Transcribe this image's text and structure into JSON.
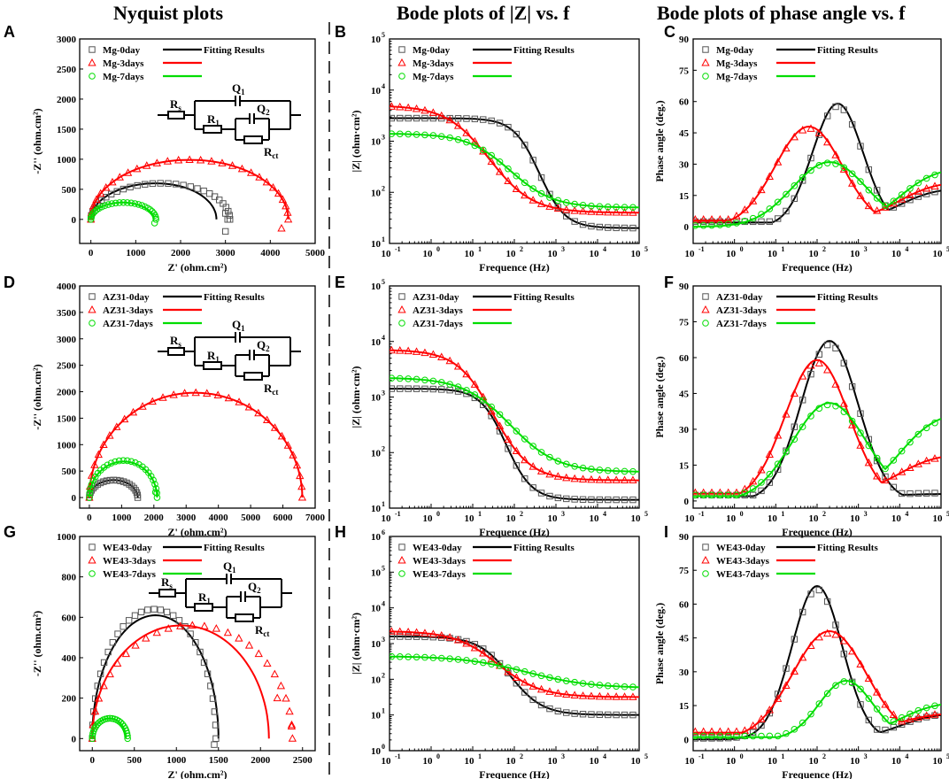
{
  "headers": {
    "nyquist": "Nyquist plots",
    "bode_z": "Bode plots of |Z| vs. f",
    "bode_phase": "Bode plots of phase angle  vs. f"
  },
  "legend": {
    "fitting": "Fitting Results"
  },
  "circuit_labels": {
    "rs": "R",
    "rs_sub": "s",
    "r1": "R",
    "r1_sub": "1",
    "q1": "Q",
    "q1_sub": "1",
    "q2": "Q",
    "q2_sub": "2",
    "rct": "R",
    "rct_sub": "ct"
  },
  "colors": {
    "day0": "#000000",
    "day3": "#ff0000",
    "day7": "#00dd00",
    "marker0": "#555555"
  },
  "chart_data": [
    {
      "panel": "A",
      "type": "scatter",
      "kind": "nyquist",
      "xlabel": "Z' (ohm.cm²)",
      "ylabel": "-Z'' (ohm.cm²)",
      "xlim": [
        -250,
        5000
      ],
      "ylim": [
        -400,
        3000
      ],
      "xticks": [
        0,
        1000,
        2000,
        3000,
        4000,
        5000
      ],
      "yticks": [
        0,
        500,
        1000,
        1500,
        2000,
        2500,
        3000
      ],
      "legend_labels": [
        "Mg-0day",
        "Mg-3days",
        "Mg-7days"
      ],
      "series": [
        {
          "name": "Mg-0day",
          "color": "day0",
          "marker": "square",
          "R": 3100,
          "peak": 600,
          "r0": 30,
          "skew": 0.6,
          "tail": [
            [
              3000,
              100
            ],
            [
              3050,
              0
            ],
            [
              3000,
              -200
            ]
          ],
          "fitR": 2800,
          "fitPeak": 600,
          "fitSkew": 0.7,
          "n": 28
        },
        {
          "name": "Mg-3days",
          "color": "day3",
          "marker": "triangle",
          "R": 4400,
          "peak": 990,
          "r0": 30,
          "skew": 0.5,
          "tail": [
            [
              4250,
              -150
            ]
          ],
          "fitR": 4400,
          "fitPeak": 990,
          "fitSkew": 0.5,
          "n": 28
        },
        {
          "name": "Mg-7days",
          "color": "day7",
          "marker": "circle",
          "R": 1450,
          "peak": 280,
          "r0": 30,
          "skew": 0.55,
          "tail": [
            [
              1420,
              -60
            ]
          ],
          "fitR": 1400,
          "fitPeak": 280,
          "fitSkew": 0.55,
          "n": 26
        }
      ]
    },
    {
      "panel": "B",
      "type": "scatter",
      "kind": "bode_z",
      "xlabel": "Frequence (Hz)",
      "ylabel": "|Z| (ohm·cm²)",
      "xlim_exp": [
        -1,
        5
      ],
      "ylim_exp": [
        1,
        5
      ],
      "legend_labels": [
        "Mg-0day",
        "Mg-3days",
        "Mg-7days"
      ],
      "series": [
        {
          "name": "Mg-0day",
          "color": "day0",
          "marker": "square",
          "logZlow": 3.45,
          "logZhigh": 1.3,
          "fc": 2.6,
          "slope": 1.0
        },
        {
          "name": "Mg-3days",
          "color": "day3",
          "marker": "triangle",
          "logZlow": 3.7,
          "logZhigh": 1.6,
          "fc": 1.4,
          "slope": 0.6
        },
        {
          "name": "Mg-7days",
          "color": "day7",
          "marker": "circle",
          "logZlow": 3.15,
          "logZhigh": 1.7,
          "fc": 1.9,
          "slope": 0.6
        }
      ]
    },
    {
      "panel": "C",
      "type": "scatter",
      "kind": "bode_phase",
      "xlabel": "Frequence (Hz)",
      "ylabel": "Phase angle (deg.)",
      "xlim_exp": [
        -1,
        5
      ],
      "ylim": [
        -8,
        90
      ],
      "yticks": [
        0,
        15,
        30,
        45,
        60,
        75,
        90
      ],
      "legend_labels": [
        "Mg-0day",
        "Mg-3days",
        "Mg-7days"
      ],
      "series": [
        {
          "name": "Mg-0day",
          "color": "day0",
          "marker": "square",
          "peak": 59,
          "center": 2.5,
          "width": 0.75,
          "base": 2,
          "baseHigh": 19
        },
        {
          "name": "Mg-3days",
          "color": "day3",
          "marker": "triangle",
          "peak": 48,
          "center": 1.8,
          "width": 1.0,
          "base": 3,
          "baseHigh": 22
        },
        {
          "name": "Mg-7days",
          "color": "day7",
          "marker": "circle",
          "peak": 31,
          "center": 2.3,
          "width": 1.1,
          "base": 0,
          "baseHigh": 29
        }
      ]
    },
    {
      "panel": "D",
      "type": "scatter",
      "kind": "nyquist",
      "xlabel": "Z' (ohm.cm²)",
      "ylabel": "-Z'' (ohm.cm²)",
      "xlim": [
        -300,
        7000
      ],
      "ylim": [
        -200,
        4000
      ],
      "xticks": [
        0,
        1000,
        2000,
        3000,
        4000,
        5000,
        6000,
        7000
      ],
      "yticks": [
        0,
        500,
        1000,
        1500,
        2000,
        2500,
        3000,
        3500,
        4000
      ],
      "legend_labels": [
        "AZ31-0day",
        "AZ31-3days",
        "AZ31-7days"
      ],
      "series": [
        {
          "name": "AZ31-0day",
          "color": "day0",
          "marker": "square",
          "R": 1500,
          "peak": 330,
          "r0": 20,
          "skew": 0.5,
          "tail": [],
          "fitR": 1500,
          "fitPeak": 330,
          "fitSkew": 0.5,
          "n": 22
        },
        {
          "name": "AZ31-3days",
          "color": "day3",
          "marker": "triangle",
          "R": 6600,
          "peak": 1980,
          "r0": 30,
          "skew": 0.45,
          "tail": [],
          "fitR": 6600,
          "fitPeak": 1980,
          "fitSkew": 0.45,
          "n": 30
        },
        {
          "name": "AZ31-7days",
          "color": "day7",
          "marker": "circle",
          "R": 2100,
          "peak": 700,
          "r0": 20,
          "skew": 0.6,
          "tail": [
            [
              2050,
              100
            ]
          ],
          "fitR": 2100,
          "fitPeak": 680,
          "fitSkew": 0.6,
          "n": 26
        }
      ]
    },
    {
      "panel": "E",
      "type": "scatter",
      "kind": "bode_z",
      "xlabel": "Frequence (Hz)",
      "ylabel": "|Z| (ohm·cm²)",
      "xlim_exp": [
        -1,
        5
      ],
      "ylim_exp": [
        1,
        5
      ],
      "legend_labels": [
        "AZ31-0day",
        "AZ31-3days",
        "AZ31-7days"
      ],
      "series": [
        {
          "name": "AZ31-0day",
          "color": "day0",
          "marker": "square",
          "logZlow": 3.15,
          "logZhigh": 1.15,
          "fc": 1.8,
          "slope": 1.0
        },
        {
          "name": "AZ31-3days",
          "color": "day3",
          "marker": "triangle",
          "logZlow": 3.85,
          "logZhigh": 1.5,
          "fc": 1.5,
          "slope": 0.7
        },
        {
          "name": "AZ31-7days",
          "color": "day7",
          "marker": "circle",
          "logZlow": 3.35,
          "logZhigh": 1.65,
          "fc": 1.9,
          "slope": 0.55
        }
      ]
    },
    {
      "panel": "F",
      "type": "scatter",
      "kind": "bode_phase",
      "xlabel": "Frequence (Hz)",
      "ylabel": "Phase angle (deg.)",
      "xlim_exp": [
        -1,
        5
      ],
      "ylim": [
        -3,
        90
      ],
      "yticks": [
        0,
        15,
        30,
        45,
        60,
        75,
        90
      ],
      "legend_labels": [
        "AZ31-0day",
        "AZ31-3days",
        "AZ31-7days"
      ],
      "series": [
        {
          "name": "AZ31-0day",
          "color": "day0",
          "marker": "square",
          "peak": 67,
          "center": 2.3,
          "width": 0.85,
          "base": 2,
          "baseHigh": 3
        },
        {
          "name": "AZ31-3days",
          "color": "day3",
          "marker": "triangle",
          "peak": 59,
          "center": 2.0,
          "width": 0.95,
          "base": 3,
          "baseHigh": 20
        },
        {
          "name": "AZ31-7days",
          "color": "day7",
          "marker": "circle",
          "peak": 41,
          "center": 2.3,
          "width": 1.1,
          "base": 2,
          "baseHigh": 38
        }
      ]
    },
    {
      "panel": "G",
      "type": "scatter",
      "kind": "nyquist",
      "xlabel": "Z' (ohm.cm²)",
      "ylabel": "-Z'' (ohm.cm²)",
      "xlim": [
        -150,
        2650
      ],
      "ylim": [
        -60,
        1000
      ],
      "xticks": [
        0,
        500,
        1000,
        1500,
        2000,
        2500
      ],
      "yticks": [
        0,
        200,
        400,
        600,
        800,
        1000
      ],
      "legend_labels": [
        "WE43-0day",
        "WE43-3days",
        "WE43-7days"
      ],
      "series": [
        {
          "name": "WE43-0day",
          "color": "day0",
          "marker": "square",
          "R": 1470,
          "peak": 640,
          "r0": 20,
          "skew": 0.5,
          "tail": [
            [
              1450,
              -30
            ]
          ],
          "fitR": 1500,
          "fitPeak": 610,
          "fitSkew": 0.52,
          "n": 30
        },
        {
          "name": "WE43-3days",
          "color": "day3",
          "marker": "triangle",
          "R": 2380,
          "peak": 560,
          "r0": 20,
          "skew": 0.5,
          "tail": [
            [
              2200,
              200
            ],
            [
              2370,
              60
            ]
          ],
          "fitR": 2100,
          "fitPeak": 560,
          "fitSkew": 0.55,
          "n": 26
        },
        {
          "name": "WE43-7days",
          "color": "day7",
          "marker": "circle",
          "R": 420,
          "peak": 100,
          "r0": 20,
          "skew": 0.5,
          "tail": [],
          "fitR": 400,
          "fitPeak": 100,
          "fitSkew": 0.5,
          "n": 24
        }
      ]
    },
    {
      "panel": "H",
      "type": "scatter",
      "kind": "bode_z",
      "xlabel": "Frequence (Hz)",
      "ylabel": "|Z| (ohm·cm²)",
      "xlim_exp": [
        -1,
        5
      ],
      "ylim_exp": [
        0,
        6
      ],
      "legend_labels": [
        "WE43-0day",
        "WE43-3days",
        "WE43-7days"
      ],
      "series": [
        {
          "name": "WE43-0day",
          "color": "day0",
          "marker": "square",
          "logZlow": 3.2,
          "logZhigh": 1.0,
          "fc": 1.9,
          "slope": 0.8
        },
        {
          "name": "WE43-3days",
          "color": "day3",
          "marker": "triangle",
          "logZlow": 3.35,
          "logZhigh": 1.5,
          "fc": 1.6,
          "slope": 0.6
        },
        {
          "name": "WE43-7days",
          "color": "day7",
          "marker": "circle",
          "logZlow": 2.65,
          "logZhigh": 1.75,
          "fc": 2.3,
          "slope": 0.4
        }
      ]
    },
    {
      "panel": "I",
      "type": "scatter",
      "kind": "bode_phase",
      "xlabel": "Frequence (Hz)",
      "ylabel": "Phase angle (deg.)",
      "xlim_exp": [
        -1,
        5
      ],
      "ylim": [
        -5,
        90
      ],
      "yticks": [
        0,
        15,
        30,
        45,
        60,
        75,
        90
      ],
      "legend_labels": [
        "WE43-0day",
        "WE43-3days",
        "WE43-7days"
      ],
      "series": [
        {
          "name": "WE43-0day",
          "color": "day0",
          "marker": "square",
          "peak": 68,
          "center": 2.0,
          "width": 0.75,
          "base": 0,
          "baseHigh": 12
        },
        {
          "name": "WE43-3days",
          "color": "day3",
          "marker": "triangle",
          "peak": 48,
          "center": 2.3,
          "width": 1.1,
          "base": 3,
          "baseHigh": 12
        },
        {
          "name": "WE43-7days",
          "color": "day7",
          "marker": "circle",
          "peak": 26,
          "center": 2.7,
          "width": 0.8,
          "base": 1,
          "baseHigh": 17
        }
      ]
    }
  ]
}
